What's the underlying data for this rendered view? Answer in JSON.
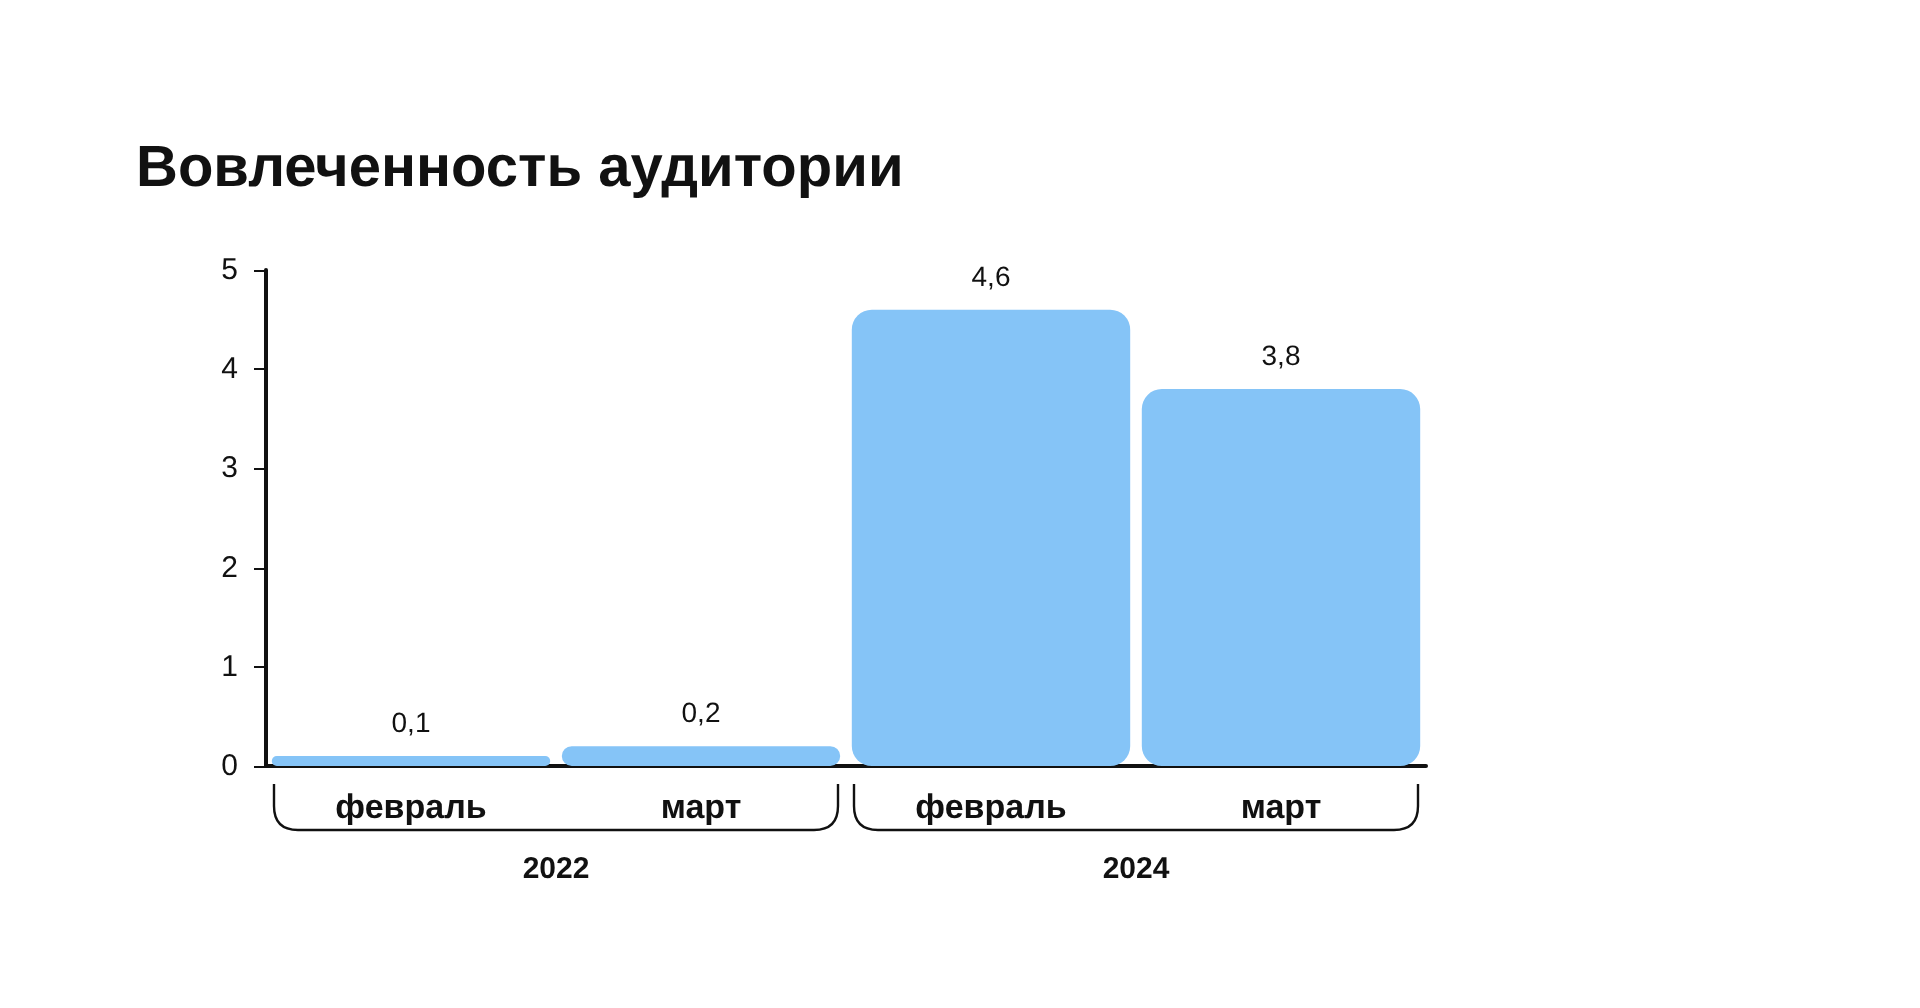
{
  "chart_data": {
    "type": "bar",
    "title": "Вовлеченность аудитории",
    "categories": [
      "февраль",
      "март",
      "февраль",
      "март"
    ],
    "values": [
      0.1,
      0.2,
      4.6,
      3.8
    ],
    "value_labels": [
      "0,1",
      "0,2",
      "4,6",
      "3,8"
    ],
    "color": "#85c4f7",
    "ylim": [
      0,
      5
    ],
    "yticks": [
      0,
      1,
      2,
      3,
      4,
      5
    ],
    "annotations": [
      "2022",
      "2024"
    ]
  }
}
